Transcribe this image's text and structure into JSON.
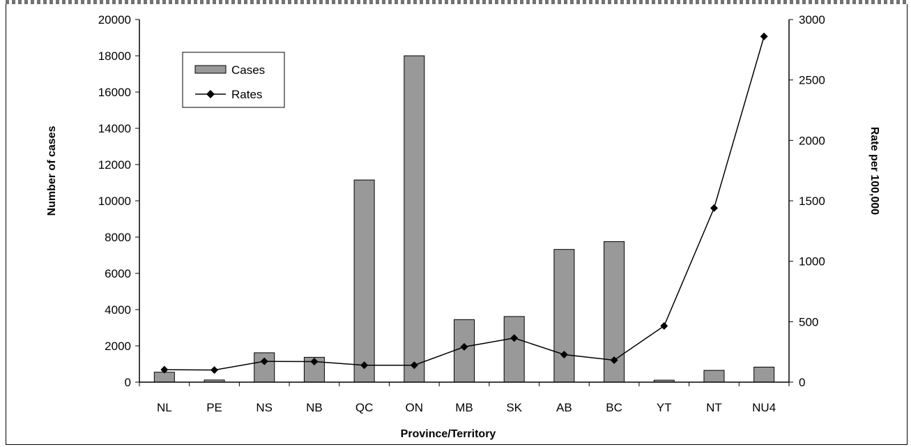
{
  "chart_data": {
    "type": "bar",
    "categories": [
      "NL",
      "PE",
      "NS",
      "NB",
      "QC",
      "ON",
      "MB",
      "SK",
      "AB",
      "BC",
      "YT",
      "NT",
      "NU4"
    ],
    "series": [
      {
        "name": "Cases",
        "type": "bar",
        "axis": "left",
        "color": "#999999",
        "values": [
          550,
          120,
          1620,
          1370,
          11150,
          18000,
          3450,
          3620,
          7320,
          7750,
          110,
          650,
          830
        ]
      },
      {
        "name": "Rates",
        "type": "line",
        "axis": "right",
        "color": "#000000",
        "marker": "diamond",
        "values": [
          103,
          100,
          172,
          170,
          140,
          140,
          292,
          365,
          228,
          182,
          465,
          1440,
          2860
        ]
      }
    ],
    "xlabel": "Province/Territory",
    "ylabel": "Number of cases",
    "y2label": "Rate per 100,000",
    "ylim": [
      0,
      20000
    ],
    "y2lim": [
      0,
      3000
    ],
    "yticks": [
      0,
      2000,
      4000,
      6000,
      8000,
      10000,
      12000,
      14000,
      16000,
      18000,
      20000
    ],
    "y2ticks": [
      0,
      500,
      1000,
      1500,
      2000,
      2500,
      3000
    ],
    "grid": false,
    "legend": {
      "placement": "top-left",
      "entries": [
        "Cases",
        "Rates"
      ]
    }
  }
}
